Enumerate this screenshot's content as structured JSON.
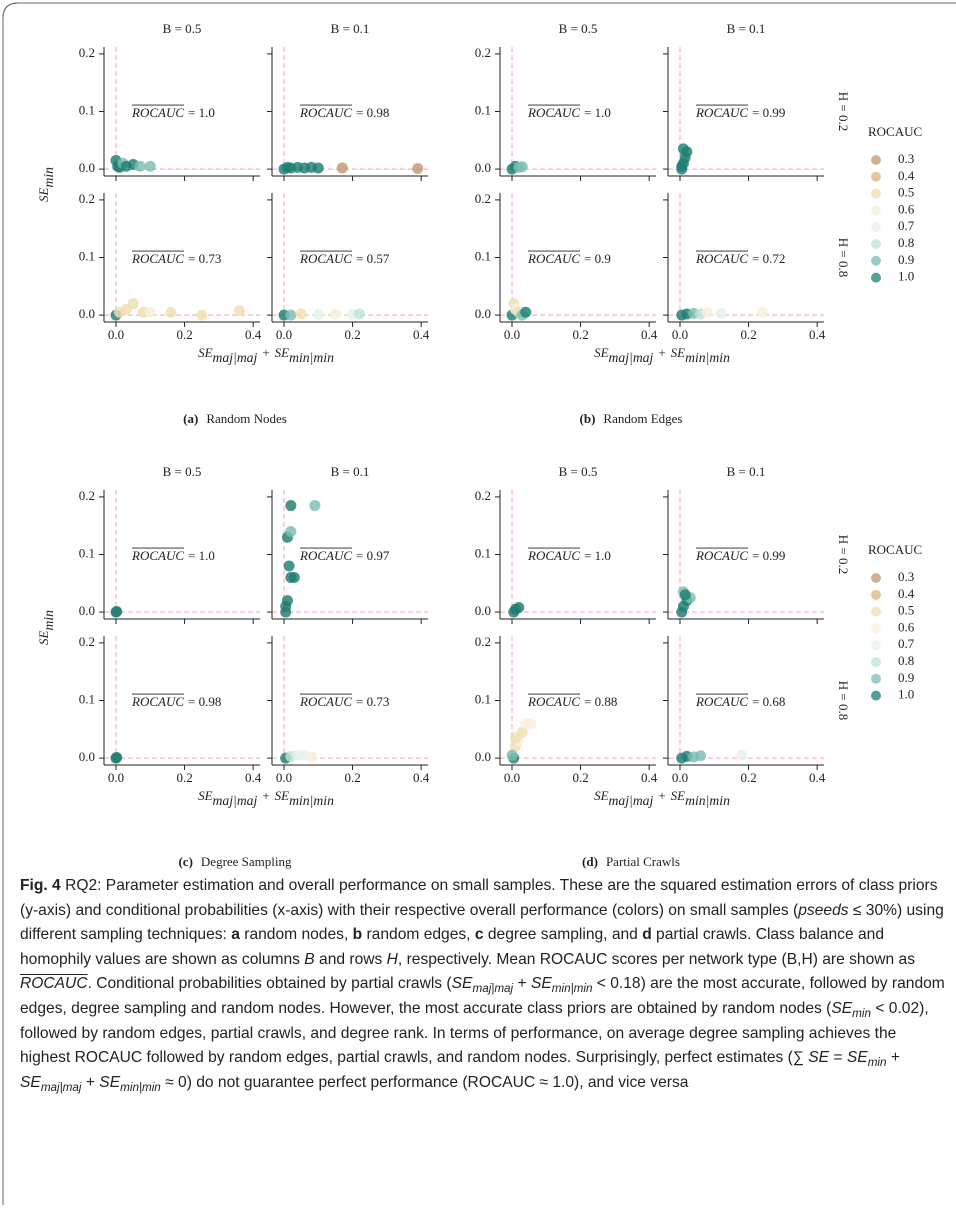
{
  "chart_data": [
    {
      "type": "scatter",
      "label": "(a)",
      "title": "Random Nodes",
      "col_titles": [
        "B = 0.5",
        "B = 0.1"
      ],
      "ylabel": [
        {
          "t": "SE",
          "s": "italic"
        },
        {
          "t": "min",
          "s": "italic sub"
        }
      ],
      "xlabel": [
        {
          "t": "SE",
          "s": "italic"
        },
        {
          "t": "maj|maj",
          "s": "italic sub"
        },
        {
          "t": "+"
        },
        {
          "t": "SE",
          "s": "italic"
        },
        {
          "t": "min|min",
          "s": "italic sub"
        }
      ],
      "xlim": [
        -0.035,
        0.42
      ],
      "ylim": [
        -0.012,
        0.212
      ],
      "xticks": [
        {
          "value": 0,
          "label": "0.0"
        },
        0.2,
        0.4
      ],
      "yticks": [
        {
          "value": 0,
          "label": "0.0"
        },
        0.1,
        0.2
      ],
      "ref_x": 0,
      "ref_y": 0,
      "ref_color": "#f6b3c8",
      "annotation_name": "ROCAUC",
      "panels": [
        {
          "annotation": "= 1.0",
          "x": [
            0,
            0.005,
            0.01,
            0.02,
            0.03,
            0.05,
            0.07,
            0.1
          ],
          "values": [
            0.015,
            0.005,
            0.003,
            0.01,
            0.005,
            0.008,
            0.005,
            0.005
          ],
          "rocauc": [
            1,
            1,
            1,
            0.9,
            1,
            1,
            0.9,
            0.9
          ]
        },
        {
          "annotation": "= 0.98",
          "x": [
            0,
            0.01,
            0.02,
            0.04,
            0.06,
            0.08,
            0.1,
            0.17,
            0.39
          ],
          "values": [
            0,
            0.003,
            0.002,
            0.003,
            0.002,
            0.003,
            0.002,
            0.002,
            0.001
          ],
          "rocauc": [
            1,
            1,
            1,
            1,
            1,
            1,
            1,
            0.3,
            0.3
          ]
        },
        {
          "annotation": "= 0.73",
          "x": [
            0,
            0.01,
            0.03,
            0.05,
            0.08,
            0.1,
            0.16,
            0.25,
            0.36
          ],
          "values": [
            0,
            0.005,
            0.01,
            0.02,
            0.005,
            0.005,
            0.005,
            0,
            0.008
          ],
          "rocauc": [
            1,
            0.5,
            0.5,
            0.5,
            0.5,
            0.6,
            0.5,
            0.5,
            0.5
          ]
        },
        {
          "annotation": "= 0.57",
          "x": [
            0,
            0.02,
            0.05,
            0.1,
            0.15,
            0.2,
            0.22
          ],
          "values": [
            0,
            0,
            0.002,
            0.001,
            0.002,
            0.001,
            0.002
          ],
          "rocauc": [
            1,
            0.9,
            0.5,
            0.7,
            0.6,
            0.7,
            0.8
          ]
        }
      ]
    },
    {
      "type": "scatter",
      "label": "(b)",
      "title": "Random Edges",
      "col_titles": [
        "B = 0.5",
        "B = 0.1"
      ],
      "row_titles": [
        "H = 0.2",
        "H = 0.8"
      ],
      "xlabel": [
        {
          "t": "SE",
          "s": "italic"
        },
        {
          "t": "maj|maj",
          "s": "italic sub"
        },
        {
          "t": "+"
        },
        {
          "t": "SE",
          "s": "italic"
        },
        {
          "t": "min|min",
          "s": "italic sub"
        }
      ],
      "xlim": [
        -0.035,
        0.42
      ],
      "ylim": [
        -0.012,
        0.212
      ],
      "xticks": [
        {
          "value": 0,
          "label": "0.0"
        },
        0.2,
        0.4
      ],
      "yticks": [
        {
          "value": 0,
          "label": "0.0"
        },
        0.1,
        0.2
      ],
      "ref_x": 0,
      "ref_y": 0,
      "ref_color": "#f6b3c8",
      "annotation_name": "ROCAUC",
      "legend": {
        "title": "ROCAUC",
        "levels": [
          0.3,
          0.4,
          0.5,
          0.6,
          0.7,
          0.8,
          0.9,
          {
            "value": 1,
            "label": "1.0"
          }
        ],
        "colors": [
          "#bf9872",
          "#dcb77c",
          "#efdeb1",
          "#f5efdc",
          "#e5f1ec",
          "#bee2da",
          "#7bbdb3",
          "#1f7e73"
        ]
      },
      "panels": [
        {
          "annotation": "= 1.0",
          "x": [
            0,
            0.01,
            0.02,
            0.03
          ],
          "values": [
            0,
            0.005,
            0.003,
            0.004
          ],
          "rocauc": [
            1,
            1,
            0.9,
            0.9
          ]
        },
        {
          "annotation": "= 0.99",
          "x": [
            0.005,
            0.01,
            0.015,
            0.02,
            0.01,
            0.005
          ],
          "values": [
            0,
            0.01,
            0.02,
            0.03,
            0.035,
            0.005
          ],
          "rocauc": [
            1,
            1,
            1,
            1,
            1,
            1
          ]
        },
        {
          "annotation": "= 0.9",
          "x": [
            0,
            0.005,
            0.01,
            0.02,
            0.03,
            0.04
          ],
          "values": [
            0,
            0.02,
            0.01,
            0.005,
            0,
            0.005
          ],
          "rocauc": [
            1,
            0.5,
            0.6,
            0.5,
            0.9,
            1
          ]
        },
        {
          "annotation": "= 0.72",
          "x": [
            0.005,
            0.02,
            0.04,
            0.06,
            0.08,
            0.12,
            0.24
          ],
          "values": [
            0,
            0.002,
            0.003,
            0.002,
            0.004,
            0.003,
            0.005
          ],
          "rocauc": [
            1,
            1,
            0.9,
            0.8,
            0.6,
            0.7,
            0.6
          ]
        }
      ]
    },
    {
      "type": "scatter",
      "label": "(c)",
      "title": "Degree Sampling",
      "col_titles": [
        "B = 0.5",
        "B = 0.1"
      ],
      "ylabel": [
        {
          "t": "SE",
          "s": "italic"
        },
        {
          "t": "min",
          "s": "italic sub"
        }
      ],
      "xlabel": [
        {
          "t": "SE",
          "s": "italic"
        },
        {
          "t": "maj|maj",
          "s": "italic sub"
        },
        {
          "t": "+"
        },
        {
          "t": "SE",
          "s": "italic"
        },
        {
          "t": "min|min",
          "s": "italic sub"
        }
      ],
      "xlim": [
        -0.035,
        0.42
      ],
      "ylim": [
        -0.012,
        0.212
      ],
      "xticks": [
        {
          "value": 0,
          "label": "0.0"
        },
        0.2,
        0.4
      ],
      "yticks": [
        {
          "value": 0,
          "label": "0.0"
        },
        0.1,
        0.2
      ],
      "ref_x": 0,
      "ref_y": 0,
      "ref_color": "#f6b3c8",
      "annotation_name": "ROCAUC",
      "panels": [
        {
          "annotation": "= 1.0",
          "x": [
            0,
            0.002
          ],
          "values": [
            0,
            0.001
          ],
          "rocauc": [
            1,
            1
          ]
        },
        {
          "annotation": "= 0.97",
          "x": [
            0.005,
            0.01,
            0.02,
            0.03,
            0.015,
            0.01,
            0.02,
            0.09,
            0.005,
            0.02
          ],
          "values": [
            0,
            0.02,
            0.06,
            0.06,
            0.08,
            0.13,
            0.185,
            0.185,
            0.01,
            0.14
          ],
          "rocauc": [
            1,
            1,
            1,
            1,
            1,
            1,
            1,
            0.9,
            1,
            0.9
          ]
        },
        {
          "annotation": "= 0.98",
          "x": [
            0,
            0.002
          ],
          "values": [
            0,
            0.001
          ],
          "rocauc": [
            1,
            1
          ]
        },
        {
          "annotation": "= 0.73",
          "x": [
            0.005,
            0.02,
            0.04,
            0.06,
            0.08
          ],
          "values": [
            0,
            0.003,
            0.005,
            0.005,
            0.002
          ],
          "rocauc": [
            1,
            0.8,
            0.7,
            0.7,
            0.6
          ]
        }
      ]
    },
    {
      "type": "scatter",
      "label": "(d)",
      "title": "Partial Crawls",
      "col_titles": [
        "B = 0.5",
        "B = 0.1"
      ],
      "row_titles": [
        "H = 0.2",
        "H = 0.8"
      ],
      "xlabel": [
        {
          "t": "SE",
          "s": "italic"
        },
        {
          "t": "maj|maj",
          "s": "italic sub"
        },
        {
          "t": "+"
        },
        {
          "t": "SE",
          "s": "italic"
        },
        {
          "t": "min|min",
          "s": "italic sub"
        }
      ],
      "xlim": [
        -0.035,
        0.42
      ],
      "ylim": [
        -0.012,
        0.212
      ],
      "xticks": [
        {
          "value": 0,
          "label": "0.0"
        },
        0.2,
        0.4
      ],
      "yticks": [
        {
          "value": 0,
          "label": "0.0"
        },
        0.1,
        0.2
      ],
      "ref_x": 0,
      "ref_y": 0,
      "ref_color": "#f6b3c8",
      "annotation_name": "ROCAUC",
      "legend": {
        "title": "ROCAUC",
        "levels": [
          0.3,
          0.4,
          0.5,
          0.6,
          0.7,
          0.8,
          0.9,
          {
            "value": 1,
            "label": "1.0"
          }
        ],
        "colors": [
          "#bf9872",
          "#dcb77c",
          "#efdeb1",
          "#f5efdc",
          "#e5f1ec",
          "#bee2da",
          "#7bbdb3",
          "#1f7e73"
        ]
      },
      "panels": [
        {
          "annotation": "= 1.0",
          "x": [
            0.005,
            0.01,
            0.02
          ],
          "values": [
            0,
            0.005,
            0.008
          ],
          "rocauc": [
            1,
            1,
            1
          ]
        },
        {
          "annotation": "= 0.99",
          "x": [
            0.005,
            0.01,
            0.02,
            0.03,
            0.01,
            0.015
          ],
          "values": [
            0,
            0.01,
            0.02,
            0.025,
            0.035,
            0.03
          ],
          "rocauc": [
            1,
            1,
            1,
            0.9,
            0.9,
            1
          ]
        },
        {
          "annotation": "= 0.88",
          "x": [
            0.005,
            0.01,
            0.02,
            0.03,
            0.04,
            0.055,
            0,
            0.01
          ],
          "values": [
            0,
            0.02,
            0.03,
            0.045,
            0.06,
            0.06,
            0.005,
            0.035
          ],
          "rocauc": [
            1,
            0.5,
            0.6,
            0.5,
            0.6,
            0.6,
            0.9,
            0.5
          ]
        },
        {
          "annotation": "= 0.68",
          "x": [
            0.005,
            0.02,
            0.04,
            0.06,
            0.18
          ],
          "values": [
            0,
            0.003,
            0.002,
            0.004,
            0.005
          ],
          "rocauc": [
            1,
            1,
            0.9,
            0.9,
            0.7
          ]
        }
      ]
    }
  ],
  "caption": [
    {
      "t": "Fig. 4",
      "s": "bold"
    },
    {
      "t": " RQ2: Parameter estimation and overall performance on small samples. These are the squared estimation errors of class priors (y-axis) and conditional probabilities (x-axis) with their respective overall performance (colors) on small samples ("
    },
    {
      "t": "pseeds",
      "s": "italic"
    },
    {
      "t": " ≤ 30%) using different sampling techniques: "
    },
    {
      "t": "a",
      "s": "bold"
    },
    {
      "t": " random nodes, "
    },
    {
      "t": "b",
      "s": "bold"
    },
    {
      "t": " random edges, "
    },
    {
      "t": "c",
      "s": "bold"
    },
    {
      "t": " degree sampling, and "
    },
    {
      "t": "d",
      "s": "bold"
    },
    {
      "t": " partial crawls. Class balance and homophily values are shown as columns "
    },
    {
      "t": "B",
      "s": "italic"
    },
    {
      "t": " and rows "
    },
    {
      "t": "H",
      "s": "italic"
    },
    {
      "t": ", respectively. Mean ROCAUC scores per network type (B,H) are shown as "
    },
    {
      "t": "ROCAUC",
      "s": "italic overline"
    },
    {
      "t": ". Conditional probabilities obtained by partial crawls ("
    },
    {
      "t": "SE",
      "s": "italic"
    },
    {
      "t": "maj|maj",
      "s": "italic sub"
    },
    {
      "t": " + "
    },
    {
      "t": "SE",
      "s": "italic"
    },
    {
      "t": "min|min",
      "s": "italic sub"
    },
    {
      "t": " < 0.18) are the most accurate, followed by random edges, degree sampling and random nodes. However, the most accurate class priors are obtained by random nodes ("
    },
    {
      "t": "SE",
      "s": "italic"
    },
    {
      "t": "min",
      "s": "italic sub"
    },
    {
      "t": " < 0.02), followed by random edges, partial crawls, and degree rank. In terms of performance, on average degree sampling achieves the highest ROCAUC followed by random edges, partial crawls, and random nodes. Surprisingly, perfect estimates (∑ "
    },
    {
      "t": "SE",
      "s": "italic"
    },
    {
      "t": " = "
    },
    {
      "t": "SE",
      "s": "italic"
    },
    {
      "t": "min",
      "s": "italic sub"
    },
    {
      "t": " + "
    },
    {
      "t": "SE",
      "s": "italic"
    },
    {
      "t": "maj|maj",
      "s": "italic sub"
    },
    {
      "t": " + "
    },
    {
      "t": "SE",
      "s": "italic"
    },
    {
      "t": "min|min",
      "s": "italic sub"
    },
    {
      "t": " ≈ 0) do not guarantee perfect performance (ROCAUC ≈ 1.0), and vice versa"
    }
  ]
}
